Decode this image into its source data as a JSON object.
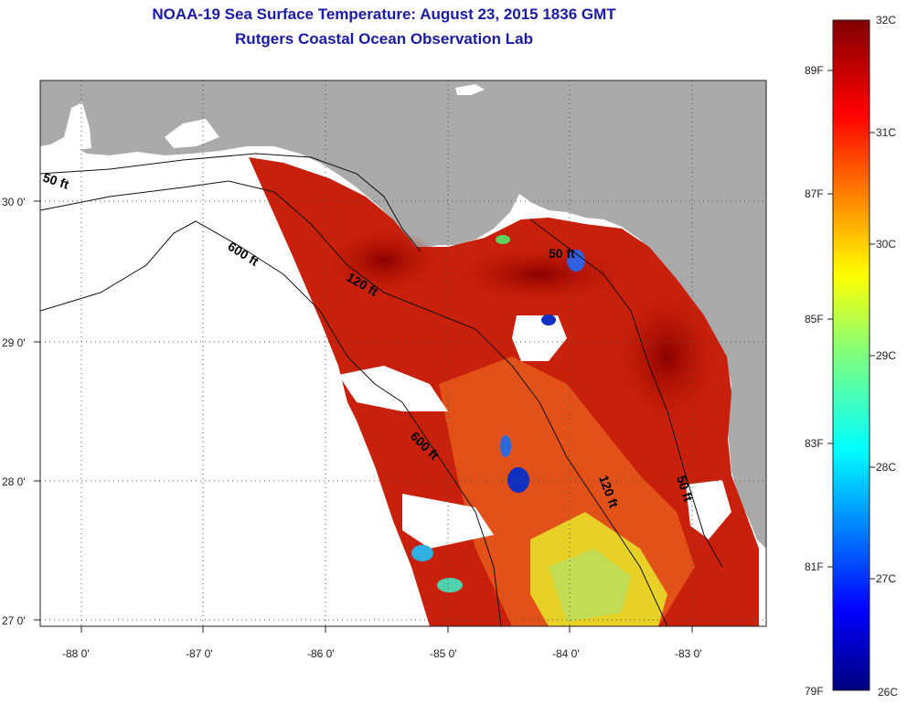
{
  "title": "NOAA-19 Sea Surface Temperature:  August 23, 2015 1836 GMT",
  "subtitle": "Rutgers Coastal Ocean Observation Lab",
  "axes": {
    "lon_labels": [
      "-88 0'",
      "-87 0'",
      "-86 0'",
      "-85 0'",
      "-84 0'",
      "-83 0'"
    ],
    "lat_labels": [
      "30 0'",
      "29 0'",
      "28 0'",
      "27 0'"
    ]
  },
  "contours": {
    "c50_west": "50 ft",
    "c600_north": "600 ft",
    "c120_north": "120 ft",
    "c50_east": "50 ft",
    "c600_south": "600 ft",
    "c120_south": "120 ft",
    "c50_south": "50 ft"
  },
  "colorbar": {
    "celsius": [
      "32C",
      "31C",
      "30C",
      "29C",
      "28C",
      "27C",
      "26C"
    ],
    "fahrenheit": [
      "89F",
      "87F",
      "85F",
      "83F",
      "81F",
      "79F"
    ]
  },
  "colors": {
    "land": "#aaaaaa",
    "title": "#1a1aa8",
    "hot": "#b81400",
    "warm": "#d63a10",
    "cool": "#f0e020",
    "cold": "#1030c0"
  }
}
